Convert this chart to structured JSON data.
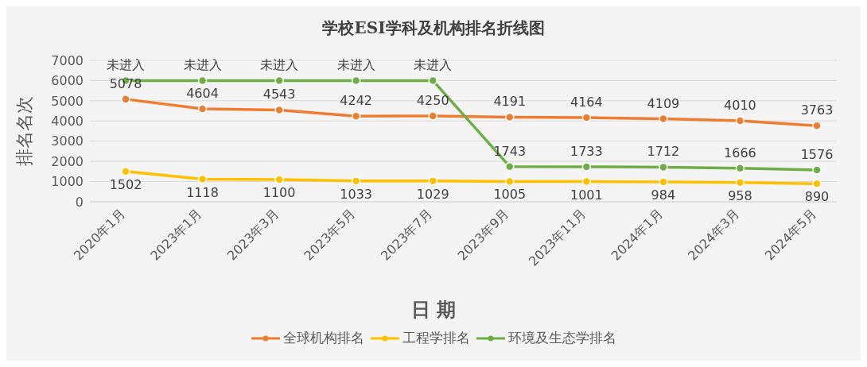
{
  "chart_data": {
    "type": "line",
    "title": "学校ESI学科及机构排名折线图",
    "xlabel": "日 期",
    "ylabel": "排名名次",
    "categories": [
      "2020年1月",
      "2023年1月",
      "2023年3月",
      "2023年5月",
      "2023年7月",
      "2023年9月",
      "2023年11月",
      "2024年1月",
      "2024年3月",
      "2024年5月"
    ],
    "series": [
      {
        "name": "全球机构排名",
        "color": "#ed7d31",
        "values": [
          5078,
          4604,
          4543,
          4242,
          4250,
          4191,
          4164,
          4109,
          4010,
          3763
        ],
        "value_labels": [
          "5078",
          "4604",
          "4543",
          "4242",
          "4250",
          "4191",
          "4164",
          "4109",
          "4010",
          "3763"
        ]
      },
      {
        "name": "工程学排名",
        "color": "#ffc000",
        "values": [
          1502,
          1118,
          1100,
          1033,
          1029,
          1005,
          1001,
          984,
          958,
          890
        ],
        "value_labels": [
          "1502",
          "1118",
          "1100",
          "1033",
          "1029",
          "1005",
          "1001",
          "984",
          "958",
          "890"
        ]
      },
      {
        "name": "环境及生态学排名",
        "color": "#70ad47",
        "values": [
          6000,
          6000,
          6000,
          6000,
          6000,
          1743,
          1733,
          1712,
          1666,
          1576
        ],
        "value_labels": [
          "未进入",
          "未进入",
          "未进入",
          "未进入",
          "未进入",
          "1743",
          "1733",
          "1712",
          "1666",
          "1576"
        ]
      }
    ],
    "ylim": [
      0,
      7000
    ],
    "yticks": [
      0,
      1000,
      2000,
      3000,
      4000,
      5000,
      6000,
      7000
    ],
    "grid": "y",
    "legend": "bottom",
    "marker": "circle",
    "line_style": "solid"
  }
}
